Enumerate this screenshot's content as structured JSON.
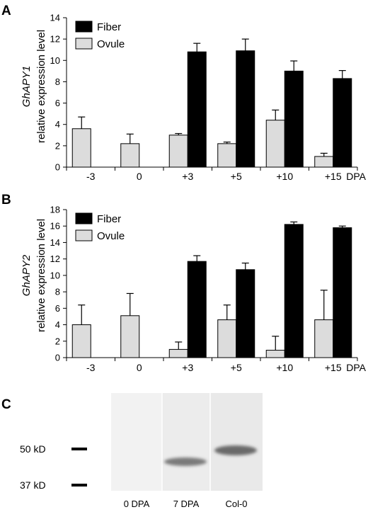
{
  "chart_data": [
    {
      "panel": "A",
      "type": "bar",
      "ylabel_gene": "GhAPY1",
      "ylabel": "relative expression level",
      "categories": [
        "-3",
        "0",
        "+3",
        "+5",
        "+10",
        "+15"
      ],
      "xunit": "DPA",
      "ylim": [
        0,
        14
      ],
      "yticks": [
        0,
        2,
        4,
        6,
        8,
        10,
        12,
        14
      ],
      "series": [
        {
          "name": "Ovule",
          "color": "#dcdcdc",
          "values": [
            3.6,
            2.2,
            3.0,
            2.2,
            4.4,
            1.0
          ],
          "errors": [
            1.1,
            0.9,
            0.15,
            0.15,
            0.95,
            0.3
          ]
        },
        {
          "name": "Fiber",
          "color": "#000000",
          "values": [
            null,
            null,
            10.8,
            10.9,
            9.0,
            8.3
          ],
          "errors": [
            null,
            null,
            0.8,
            1.1,
            0.95,
            0.75
          ]
        }
      ],
      "legend_order": [
        "Fiber",
        "Ovule"
      ],
      "legend_position": "top-left"
    },
    {
      "panel": "B",
      "type": "bar",
      "ylabel_gene": "GhAPY2",
      "ylabel": "relative expression level",
      "categories": [
        "-3",
        "0",
        "+3",
        "+5",
        "+10",
        "+15"
      ],
      "xunit": "DPA",
      "ylim": [
        0,
        18
      ],
      "yticks": [
        0,
        2,
        4,
        6,
        8,
        10,
        12,
        14,
        16,
        18
      ],
      "series": [
        {
          "name": "Ovule",
          "color": "#dcdcdc",
          "values": [
            4.0,
            5.1,
            1.0,
            4.6,
            0.9,
            4.6
          ],
          "errors": [
            2.4,
            2.7,
            0.9,
            1.8,
            1.7,
            3.6
          ]
        },
        {
          "name": "Fiber",
          "color": "#000000",
          "values": [
            null,
            null,
            11.7,
            10.7,
            16.2,
            15.8
          ],
          "errors": [
            null,
            null,
            0.7,
            0.8,
            0.3,
            0.2
          ]
        }
      ],
      "legend_order": [
        "Fiber",
        "Ovule"
      ],
      "legend_position": "top-left"
    }
  ],
  "blot": {
    "panel": "C",
    "markers": [
      "50 kD",
      "37 kD"
    ],
    "lanes": [
      "0 DPA",
      "7 DPA",
      "Col-0"
    ]
  }
}
